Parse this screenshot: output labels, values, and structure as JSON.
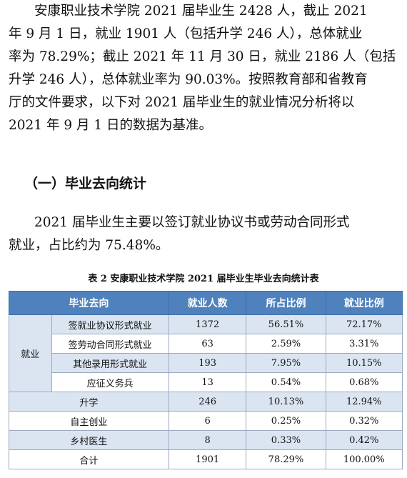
{
  "paragraph1": {
    "lines": [
      "安康职业技术学院 2021 届毕业生 2428 人，截止 2021",
      "年 9 月 1 日，就业 1901 人（包括升学 246 人），总体就业",
      "率为 78.29%；截止 2021 年 11 月 30 日，就业 2186 人（包括",
      "升学 246 人），总体就业率为 90.03%。按照教育部和省教育",
      "厅的文件要求，以下对 2021 届毕业生的就业情况分析将以",
      "2021 年 9 月 1 日的数据为基准。"
    ]
  },
  "heading": "（一）毕业去向统计",
  "paragraph2": {
    "lines": [
      "2021 届毕业生主要以签订就业协议书或劳动合同形式",
      "就业，占比约为 75.48%。"
    ]
  },
  "caption": "表 2  安康职业技术学院 2021 届毕业生毕业去向统计表",
  "table": {
    "headers": [
      "毕业去向",
      "就业人数",
      "所占比例",
      "就业比例"
    ],
    "group_label": "就业",
    "rows": [
      {
        "label": "签就业协议形式就业",
        "count": "1372",
        "ratio": "56.51%",
        "emp_ratio": "72.17%"
      },
      {
        "label": "签劳动合同形式就业",
        "count": "63",
        "ratio": "2.59%",
        "emp_ratio": "3.31%"
      },
      {
        "label": "其他录用形式就业",
        "count": "193",
        "ratio": "7.95%",
        "emp_ratio": "10.15%"
      },
      {
        "label": "应征义务兵",
        "count": "13",
        "ratio": "0.54%",
        "emp_ratio": "0.68%"
      },
      {
        "label": "升学",
        "count": "246",
        "ratio": "10.13%",
        "emp_ratio": "12.94%"
      },
      {
        "label": "自主创业",
        "count": "6",
        "ratio": "0.25%",
        "emp_ratio": "0.32%"
      },
      {
        "label": "乡村医生",
        "count": "8",
        "ratio": "0.33%",
        "emp_ratio": "0.42%"
      },
      {
        "label": "合计",
        "count": "1901",
        "ratio": "78.29%",
        "emp_ratio": "100.00%"
      }
    ]
  }
}
